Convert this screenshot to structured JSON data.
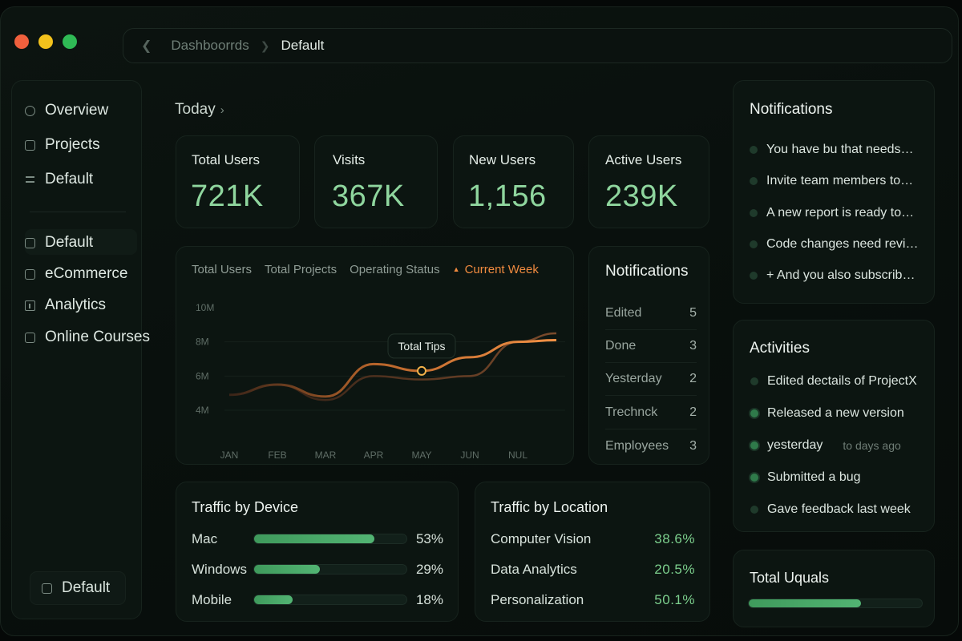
{
  "breadcrumb": {
    "parent": "Dashboorrds",
    "current": "Default"
  },
  "sidebar": {
    "items": [
      {
        "label": "Overview",
        "icon": "circle-icon"
      },
      {
        "label": "Projects",
        "icon": "folder-icon"
      },
      {
        "label": "Default",
        "icon": "bars-icon"
      },
      {
        "label": "Default",
        "icon": "square-icon"
      },
      {
        "label": "eCommerce",
        "icon": "bag-icon"
      },
      {
        "label": "Analytics",
        "icon": "chart-icon"
      },
      {
        "label": "Online Courses",
        "icon": "book-icon"
      }
    ],
    "footer": "Default"
  },
  "today": "Today",
  "stats": [
    {
      "label": "Total Users",
      "value": "721K"
    },
    {
      "label": "Visits",
      "value": "367K"
    },
    {
      "label": "New Users",
      "value": "1,156"
    },
    {
      "label": "Active Users",
      "value": "239K"
    }
  ],
  "chart_tabs": [
    "Total Users",
    "Total Projects",
    "Operating Status",
    "Current Week"
  ],
  "chart_data": {
    "type": "line",
    "categories": [
      "JAN",
      "FEB",
      "MAR",
      "APR",
      "MAY",
      "JUN",
      "NUL"
    ],
    "y_ticks": [
      "10M",
      "8M",
      "6M",
      "4M"
    ],
    "ylim": [
      4,
      10
    ],
    "tooltip": "Total Tips",
    "series": [
      {
        "values": [
          4.9,
          5.5,
          4.8,
          6.7,
          6.3,
          7.1,
          8.0,
          8.1
        ],
        "color": "#f08a3f"
      },
      {
        "values": [
          4.9,
          5.5,
          4.6,
          6.0,
          5.8,
          6.0,
          8.0,
          8.5
        ],
        "color": "#4a3020"
      }
    ],
    "x": [
      0,
      1,
      2,
      3,
      4,
      5,
      6,
      6.8
    ],
    "highlight": {
      "x": 4,
      "y": 6.3
    }
  },
  "mid_notifications": {
    "title": "Notifications",
    "rows": [
      {
        "label": "Edited",
        "count": "5"
      },
      {
        "label": "Done",
        "count": "3"
      },
      {
        "label": "Yesterday",
        "count": "2"
      },
      {
        "label": "Trechnck",
        "count": "2"
      },
      {
        "label": "Employees",
        "count": "3"
      }
    ]
  },
  "traffic_device": {
    "title": "Traffic by Device",
    "rows": [
      {
        "label": "Mac",
        "pct": "53%",
        "fill": 0.79
      },
      {
        "label": "Windows",
        "pct": "29%",
        "fill": 0.43
      },
      {
        "label": "Mobile",
        "pct": "18%",
        "fill": 0.25
      }
    ]
  },
  "traffic_location": {
    "title": "Traffic by Location",
    "rows": [
      {
        "label": "Computer Vision",
        "pct": "38.6%"
      },
      {
        "label": "Data Analytics",
        "pct": "20.5%"
      },
      {
        "label": "Personalization",
        "pct": "50.1%"
      }
    ]
  },
  "right_notifications": {
    "title": "Notifications",
    "items": [
      "You have bu that needs…",
      "Invite team members to…",
      "A new report is ready to…",
      "Code changes need revi…",
      "+ And you also subscrib…"
    ]
  },
  "activities": {
    "title": "Activities",
    "items": [
      {
        "text": "Edited dectails of ProjectX",
        "ago": ""
      },
      {
        "text": "Released a new version",
        "ago": ""
      },
      {
        "text": "yesterday",
        "ago": "to days ago"
      },
      {
        "text": "Submitted a bug",
        "ago": ""
      },
      {
        "text": "Gave feedback last week",
        "ago": ""
      }
    ]
  },
  "total_uquals": {
    "title": "Total Uquals",
    "fill": 0.65
  },
  "colors": {
    "accent_green": "#8fd69e",
    "accent_orange": "#f08a3f",
    "background": "#0c1410"
  }
}
